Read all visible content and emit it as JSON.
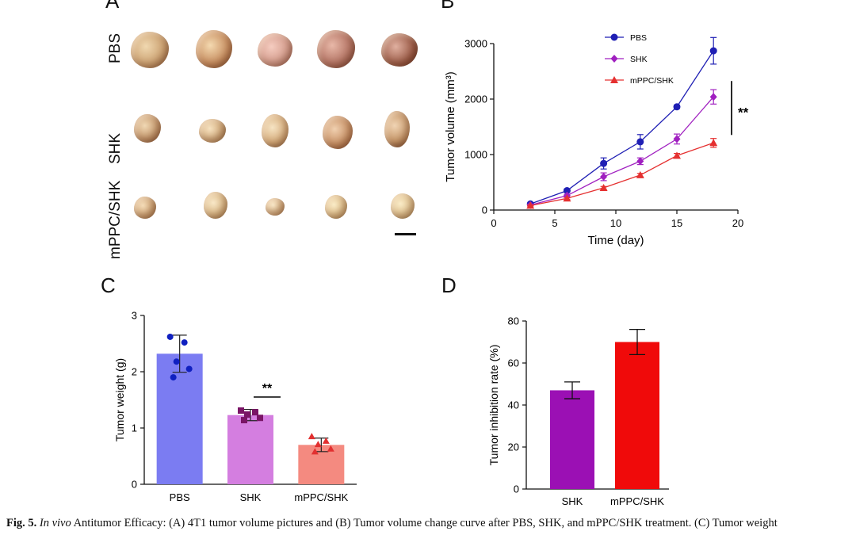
{
  "panels": {
    "a_letter": "A",
    "b_letter": "B",
    "c_letter": "C",
    "d_letter": "D"
  },
  "photo": {
    "rows": [
      {
        "label": "PBS"
      },
      {
        "label": "SHK"
      },
      {
        "label": "mPPC/SHK"
      }
    ],
    "colors": {
      "pbs": "#c9a27a",
      "shk": "#d8b48a",
      "mppc": "#e2c48f"
    }
  },
  "chart_data": [
    {
      "type": "line",
      "panel": "B",
      "xlabel": "Time (day)",
      "ylabel": "Tumor volume (mm³)",
      "xlim": [
        0,
        20
      ],
      "ylim": [
        0,
        3000
      ],
      "xticks": [
        0,
        5,
        10,
        15,
        20
      ],
      "yticks": [
        0,
        1000,
        2000,
        3000
      ],
      "x": [
        3,
        6,
        9,
        12,
        15,
        18
      ],
      "series": [
        {
          "name": "PBS",
          "color": "#1f1fb4",
          "marker": "circle",
          "values": [
            110,
            350,
            840,
            1230,
            1860,
            2870
          ],
          "err": [
            20,
            30,
            100,
            130,
            30,
            240
          ]
        },
        {
          "name": "SHK",
          "color": "#a020c0",
          "marker": "diamond",
          "values": [
            90,
            260,
            600,
            880,
            1280,
            2040
          ],
          "err": [
            15,
            25,
            70,
            60,
            90,
            130
          ]
        },
        {
          "name": "mPPC/SHK",
          "color": "#e53030",
          "marker": "triangle",
          "values": [
            80,
            210,
            400,
            630,
            980,
            1210
          ],
          "err": [
            10,
            15,
            25,
            30,
            40,
            80
          ]
        }
      ],
      "legend": "top-left inside",
      "significance": "**"
    },
    {
      "type": "bar",
      "panel": "C",
      "ylabel": "Tumor weight (g)",
      "ylim": [
        0,
        3
      ],
      "yticks": [
        0,
        1,
        2,
        3
      ],
      "categories": [
        "PBS",
        "SHK",
        "mPPC/SHK"
      ],
      "values": [
        2.32,
        1.23,
        0.7
      ],
      "err": [
        0.33,
        0.1,
        0.12
      ],
      "colors": [
        "#7b7cf2",
        "#d47ee0",
        "#f48a80"
      ],
      "point_colors": [
        "#1020c0",
        "#7a1466",
        "#e23030"
      ],
      "points": [
        [
          2.62,
          2.52,
          2.18,
          2.05,
          1.9
        ],
        [
          1.31,
          1.28,
          1.24,
          1.18,
          1.14
        ],
        [
          0.85,
          0.77,
          0.71,
          0.63,
          0.58
        ]
      ],
      "significance": "**"
    },
    {
      "type": "bar",
      "panel": "D",
      "ylabel": "Tumor inhibition rate (%)",
      "ylim": [
        0,
        80
      ],
      "yticks": [
        0,
        20,
        40,
        60,
        80
      ],
      "categories": [
        "SHK",
        "mPPC/SHK"
      ],
      "values": [
        47,
        70
      ],
      "err": [
        4,
        6
      ],
      "colors": [
        "#9b10b4",
        "#f00a0a"
      ]
    }
  ],
  "caption": {
    "fig_label": "Fig. 5.",
    "in_vivo": "In vivo",
    "text": " Antitumor Efficacy: (A) 4T1 tumor volume pictures and (B) Tumor volume change curve after PBS, SHK, and mPPC/SHK treatment. (C) Tumor weight"
  }
}
